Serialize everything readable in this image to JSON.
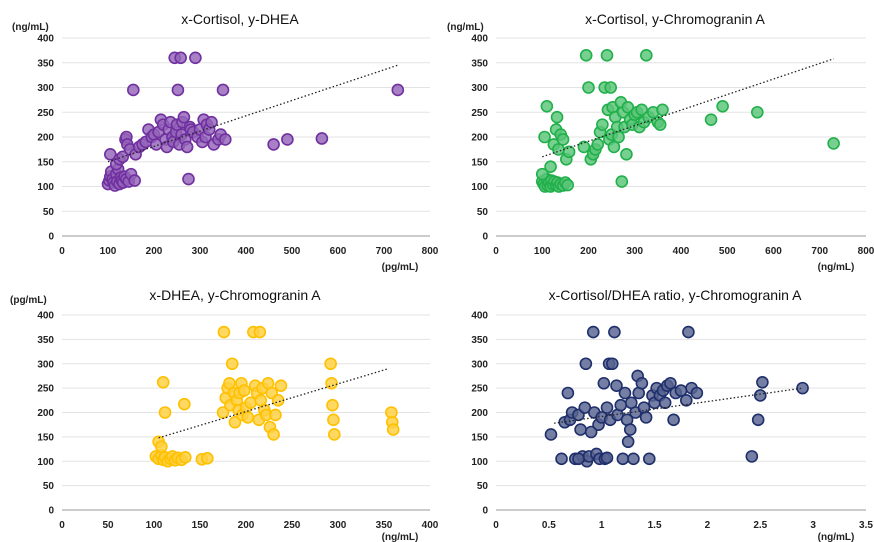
{
  "chart_data": [
    {
      "type": "scatter",
      "title": "x-Cortisol, y-DHEA",
      "y_unit_label": "(ng/mL)",
      "x_unit_label": "(pg/mL)",
      "xlim": [
        0,
        800
      ],
      "ylim": [
        0,
        400
      ],
      "x_ticks": [
        "0",
        "100",
        "200",
        "300",
        "400",
        "500",
        "600",
        "700",
        "800"
      ],
      "y_ticks": [
        "0",
        "50",
        "100",
        "150",
        "200",
        "250",
        "300",
        "350",
        "400"
      ],
      "grid": true,
      "color": "#7030A0",
      "trendline": [
        [
          100,
          150
        ],
        [
          730,
          345
        ]
      ],
      "points": [
        [
          100,
          105
        ],
        [
          103,
          112
        ],
        [
          105,
          120
        ],
        [
          107,
          130
        ],
        [
          110,
          115
        ],
        [
          112,
          108
        ],
        [
          115,
          102
        ],
        [
          118,
          125
        ],
        [
          120,
          110
        ],
        [
          122,
          135
        ],
        [
          125,
          105
        ],
        [
          128,
          118
        ],
        [
          130,
          112
        ],
        [
          133,
          108
        ],
        [
          136,
          120
        ],
        [
          140,
          115
        ],
        [
          145,
          110
        ],
        [
          150,
          125
        ],
        [
          158,
          112
        ],
        [
          105,
          165
        ],
        [
          118,
          145
        ],
        [
          125,
          155
        ],
        [
          132,
          160
        ],
        [
          138,
          195
        ],
        [
          140,
          200
        ],
        [
          142,
          185
        ],
        [
          148,
          175
        ],
        [
          155,
          295
        ],
        [
          160,
          165
        ],
        [
          168,
          180
        ],
        [
          175,
          185
        ],
        [
          182,
          190
        ],
        [
          188,
          215
        ],
        [
          195,
          200
        ],
        [
          200,
          205
        ],
        [
          205,
          185
        ],
        [
          210,
          210
        ],
        [
          215,
          235
        ],
        [
          220,
          225
        ],
        [
          225,
          195
        ],
        [
          228,
          180
        ],
        [
          232,
          215
        ],
        [
          236,
          230
        ],
        [
          240,
          200
        ],
        [
          242,
          190
        ],
        [
          245,
          360
        ],
        [
          248,
          210
        ],
        [
          250,
          225
        ],
        [
          252,
          295
        ],
        [
          255,
          185
        ],
        [
          258,
          360
        ],
        [
          260,
          205
        ],
        [
          262,
          230
        ],
        [
          265,
          240
        ],
        [
          268,
          195
        ],
        [
          272,
          180
        ],
        [
          275,
          115
        ],
        [
          278,
          220
        ],
        [
          280,
          215
        ],
        [
          285,
          210
        ],
        [
          290,
          360
        ],
        [
          295,
          200
        ],
        [
          300,
          215
        ],
        [
          305,
          190
        ],
        [
          308,
          235
        ],
        [
          312,
          200
        ],
        [
          315,
          225
        ],
        [
          320,
          215
        ],
        [
          325,
          230
        ],
        [
          330,
          185
        ],
        [
          340,
          195
        ],
        [
          345,
          205
        ],
        [
          350,
          295
        ],
        [
          355,
          195
        ],
        [
          460,
          185
        ],
        [
          490,
          195
        ],
        [
          565,
          197
        ],
        [
          730,
          295
        ]
      ]
    },
    {
      "type": "scatter",
      "title": "x-Cortisol, y-Chromogranin A",
      "y_unit_label": "(ng/mL)",
      "x_unit_label": "(ng/mL)",
      "xlim": [
        0,
        800
      ],
      "ylim": [
        0,
        400
      ],
      "x_ticks": [
        "0",
        "100",
        "200",
        "300",
        "400",
        "500",
        "600",
        "700",
        "800"
      ],
      "y_ticks": [
        "0",
        "50",
        "100",
        "150",
        "200",
        "250",
        "300",
        "350",
        "400"
      ],
      "grid": true,
      "color": "#21B04B",
      "trendline": [
        [
          100,
          160
        ],
        [
          730,
          358
        ]
      ],
      "points": [
        [
          100,
          110
        ],
        [
          103,
          105
        ],
        [
          106,
          100
        ],
        [
          110,
          115
        ],
        [
          112,
          102
        ],
        [
          115,
          108
        ],
        [
          118,
          100
        ],
        [
          120,
          112
        ],
        [
          123,
          104
        ],
        [
          126,
          110
        ],
        [
          130,
          103
        ],
        [
          133,
          108
        ],
        [
          136,
          100
        ],
        [
          140,
          105
        ],
        [
          145,
          102
        ],
        [
          150,
          108
        ],
        [
          155,
          103
        ],
        [
          100,
          125
        ],
        [
          105,
          200
        ],
        [
          110,
          262
        ],
        [
          118,
          140
        ],
        [
          125,
          185
        ],
        [
          130,
          215
        ],
        [
          132,
          240
        ],
        [
          135,
          175
        ],
        [
          140,
          205
        ],
        [
          145,
          195
        ],
        [
          152,
          155
        ],
        [
          158,
          170
        ],
        [
          190,
          180
        ],
        [
          195,
          365
        ],
        [
          200,
          300
        ],
        [
          205,
          155
        ],
        [
          210,
          165
        ],
        [
          215,
          175
        ],
        [
          220,
          185
        ],
        [
          225,
          210
        ],
        [
          230,
          225
        ],
        [
          235,
          300
        ],
        [
          240,
          365
        ],
        [
          242,
          255
        ],
        [
          245,
          195
        ],
        [
          248,
          300
        ],
        [
          250,
          205
        ],
        [
          252,
          260
        ],
        [
          255,
          180
        ],
        [
          258,
          240
        ],
        [
          262,
          220
        ],
        [
          265,
          200
        ],
        [
          270,
          270
        ],
        [
          272,
          110
        ],
        [
          275,
          250
        ],
        [
          278,
          220
        ],
        [
          282,
          165
        ],
        [
          285,
          260
        ],
        [
          290,
          235
        ],
        [
          295,
          225
        ],
        [
          300,
          245
        ],
        [
          305,
          250
        ],
        [
          310,
          220
        ],
        [
          315,
          255
        ],
        [
          320,
          230
        ],
        [
          325,
          365
        ],
        [
          330,
          240
        ],
        [
          340,
          250
        ],
        [
          350,
          230
        ],
        [
          355,
          225
        ],
        [
          360,
          255
        ],
        [
          465,
          235
        ],
        [
          490,
          262
        ],
        [
          565,
          250
        ],
        [
          730,
          187
        ]
      ]
    },
    {
      "type": "scatter",
      "title": "x-DHEA, y-Chromogranin A",
      "y_unit_label": "(pg/mL)",
      "x_unit_label": "(ng/mL)",
      "xlim": [
        0,
        400
      ],
      "ylim": [
        0,
        400
      ],
      "x_ticks": [
        "0",
        "50",
        "100",
        "150",
        "200",
        "250",
        "300",
        "350",
        "400"
      ],
      "y_ticks": [
        "0",
        "50",
        "100",
        "150",
        "200",
        "250",
        "300",
        "350",
        "400"
      ],
      "grid": true,
      "color": "#FFC000",
      "trendline": [
        [
          105,
          148
        ],
        [
          355,
          290
        ]
      ],
      "points": [
        [
          102,
          110
        ],
        [
          105,
          105
        ],
        [
          108,
          112
        ],
        [
          110,
          103
        ],
        [
          112,
          108
        ],
        [
          115,
          100
        ],
        [
          118,
          105
        ],
        [
          120,
          110
        ],
        [
          123,
          102
        ],
        [
          126,
          107
        ],
        [
          130,
          103
        ],
        [
          134,
          108
        ],
        [
          105,
          140
        ],
        [
          108,
          130
        ],
        [
          110,
          262
        ],
        [
          112,
          200
        ],
        [
          133,
          217
        ],
        [
          152,
          104
        ],
        [
          158,
          106
        ],
        [
          175,
          200
        ],
        [
          176,
          365
        ],
        [
          178,
          230
        ],
        [
          180,
          250
        ],
        [
          182,
          260
        ],
        [
          183,
          215
        ],
        [
          185,
          300
        ],
        [
          187,
          240
        ],
        [
          188,
          180
        ],
        [
          190,
          225
        ],
        [
          192,
          205
        ],
        [
          193,
          240
        ],
        [
          195,
          260
        ],
        [
          196,
          195
        ],
        [
          198,
          245
        ],
        [
          200,
          210
        ],
        [
          202,
          190
        ],
        [
          205,
          220
        ],
        [
          208,
          365
        ],
        [
          210,
          255
        ],
        [
          212,
          240
        ],
        [
          214,
          185
        ],
        [
          215,
          365
        ],
        [
          216,
          225
        ],
        [
          218,
          250
        ],
        [
          220,
          205
        ],
        [
          222,
          195
        ],
        [
          224,
          260
        ],
        [
          226,
          170
        ],
        [
          228,
          240
        ],
        [
          230,
          155
        ],
        [
          232,
          195
        ],
        [
          235,
          225
        ],
        [
          238,
          255
        ],
        [
          292,
          300
        ],
        [
          293,
          260
        ],
        [
          294,
          215
        ],
        [
          295,
          185
        ],
        [
          296,
          155
        ],
        [
          358,
          200
        ],
        [
          359,
          180
        ],
        [
          360,
          165
        ]
      ]
    },
    {
      "type": "scatter",
      "title": "x-Cortisol/DHEA ratio, y-Chromogranin A",
      "y_unit_label": "",
      "x_unit_label": "(ng/mL)",
      "xlim": [
        0,
        3.5
      ],
      "ylim": [
        0,
        400
      ],
      "x_ticks": [
        "0",
        "0.5",
        "1",
        "1.5",
        "2",
        "2.5",
        "3",
        "3.5"
      ],
      "y_ticks": [
        "0",
        "50",
        "100",
        "150",
        "200",
        "250",
        "300",
        "350",
        "400"
      ],
      "grid": true,
      "color": "#1F2F6B",
      "trendline": [
        [
          0.55,
          178
        ],
        [
          2.9,
          250
        ]
      ],
      "points": [
        [
          0.52,
          155
        ],
        [
          0.62,
          105
        ],
        [
          0.65,
          180
        ],
        [
          0.68,
          240
        ],
        [
          0.7,
          185
        ],
        [
          0.72,
          200
        ],
        [
          0.75,
          105
        ],
        [
          0.78,
          195
        ],
        [
          0.8,
          165
        ],
        [
          0.82,
          110
        ],
        [
          0.84,
          210
        ],
        [
          0.86,
          100
        ],
        [
          0.88,
          110
        ],
        [
          0.9,
          160
        ],
        [
          0.92,
          365
        ],
        [
          0.93,
          200
        ],
        [
          0.95,
          115
        ],
        [
          0.97,
          175
        ],
        [
          0.98,
          105
        ],
        [
          1.0,
          190
        ],
        [
          1.02,
          260
        ],
        [
          1.03,
          105
        ],
        [
          1.05,
          210
        ],
        [
          1.07,
          300
        ],
        [
          1.08,
          185
        ],
        [
          1.1,
          300
        ],
        [
          1.12,
          365
        ],
        [
          1.14,
          255
        ],
        [
          1.15,
          195
        ],
        [
          1.18,
          215
        ],
        [
          1.2,
          105
        ],
        [
          1.22,
          240
        ],
        [
          1.24,
          185
        ],
        [
          1.25,
          140
        ],
        [
          1.27,
          165
        ],
        [
          1.28,
          220
        ],
        [
          1.3,
          105
        ],
        [
          1.32,
          200
        ],
        [
          1.34,
          275
        ],
        [
          1.35,
          240
        ],
        [
          1.38,
          260
        ],
        [
          1.4,
          210
        ],
        [
          1.42,
          190
        ],
        [
          1.45,
          105
        ],
        [
          1.48,
          235
        ],
        [
          1.5,
          220
        ],
        [
          1.52,
          250
        ],
        [
          1.55,
          235
        ],
        [
          1.58,
          245
        ],
        [
          1.6,
          220
        ],
        [
          1.62,
          255
        ],
        [
          1.65,
          260
        ],
        [
          1.68,
          185
        ],
        [
          1.7,
          240
        ],
        [
          1.75,
          245
        ],
        [
          1.8,
          225
        ],
        [
          1.82,
          365
        ],
        [
          1.85,
          250
        ],
        [
          1.9,
          240
        ],
        [
          2.42,
          110
        ],
        [
          2.48,
          185
        ],
        [
          2.5,
          235
        ],
        [
          2.52,
          262
        ],
        [
          2.9,
          250
        ],
        [
          0.85,
          300
        ],
        [
          0.78,
          105
        ],
        [
          1.05,
          107
        ]
      ]
    }
  ]
}
